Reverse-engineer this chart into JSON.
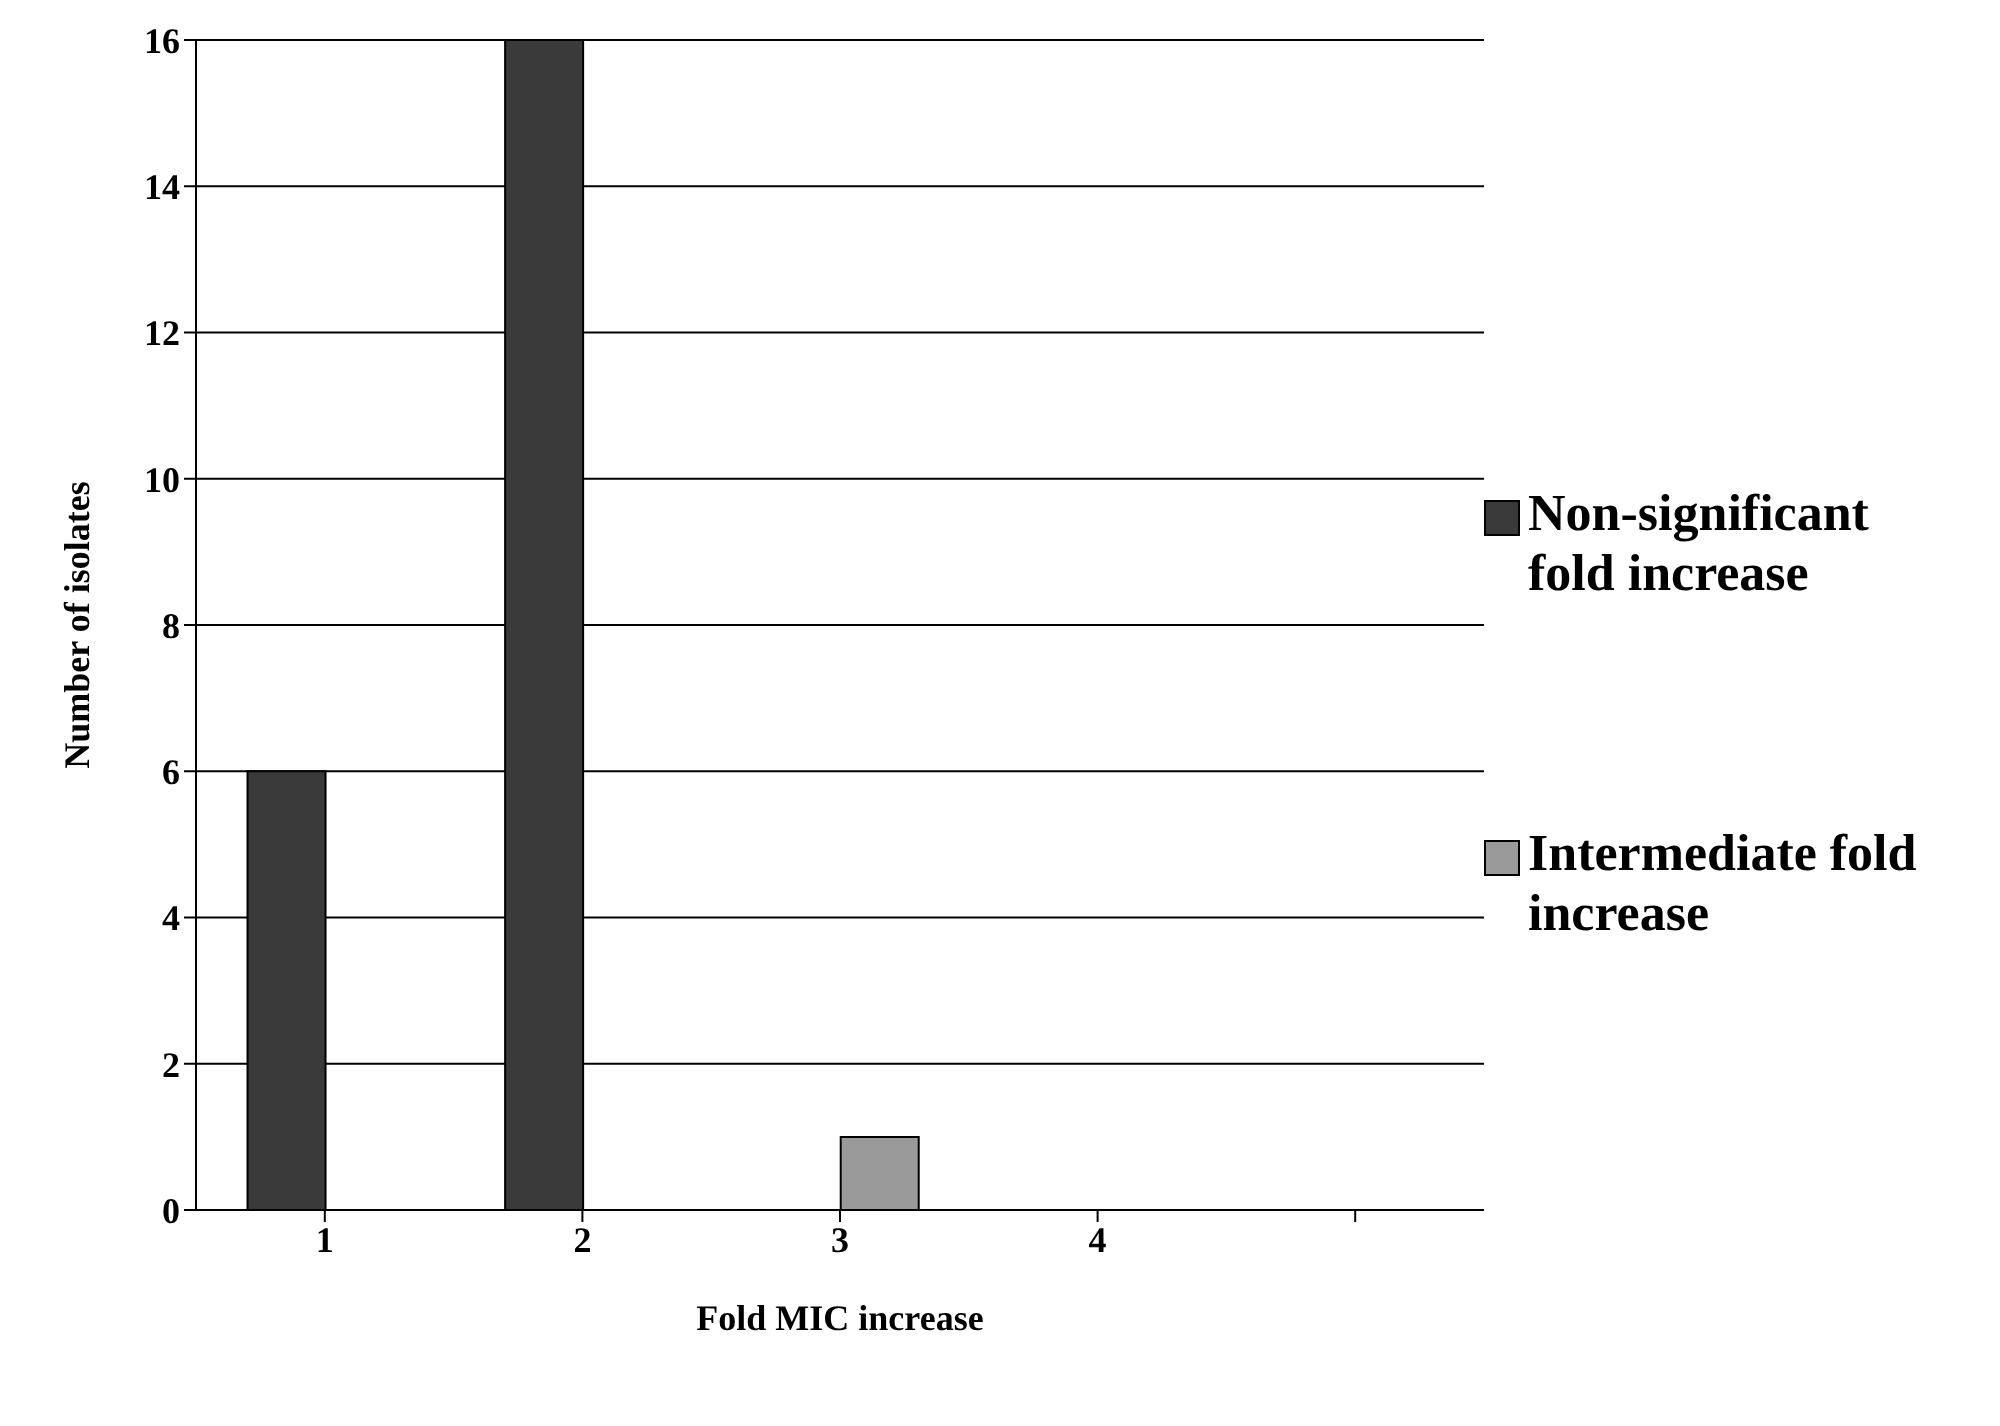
{
  "chart_data": {
    "type": "bar",
    "xlabel": "Fold MIC increase",
    "ylabel": "Number of isolates",
    "categories": [
      "1",
      "2",
      "3",
      "4",
      null
    ],
    "series": [
      {
        "name": "Non-significant fold increase",
        "color": "#3a3a3a",
        "values": [
          6,
          16,
          null,
          null,
          null
        ]
      },
      {
        "name": "Intermediate fold increase",
        "color": "#9a9a9a",
        "values": [
          null,
          null,
          1,
          null,
          null
        ]
      }
    ],
    "ylim": [
      0,
      16
    ],
    "yticks": [
      0,
      2,
      4,
      6,
      8,
      10,
      12,
      14,
      16
    ],
    "grid": "y",
    "legend": "right"
  }
}
